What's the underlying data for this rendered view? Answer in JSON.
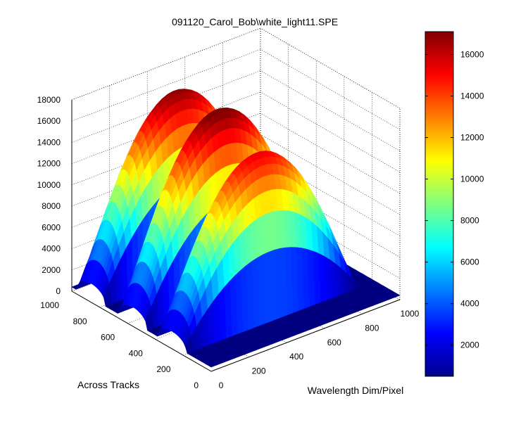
{
  "chart_data": {
    "type": "surface",
    "title": "091120_Carol_Bob\\white_light11.SPE",
    "xlabel": "Wavelength Dim/Pixel",
    "ylabel": "Across Tracks",
    "zlabel": "",
    "xlim": [
      0,
      1000
    ],
    "ylim": [
      0,
      1000
    ],
    "zlim": [
      0,
      18000
    ],
    "x_ticks": [
      0,
      200,
      400,
      600,
      800,
      1000
    ],
    "y_ticks": [
      0,
      200,
      400,
      600,
      800,
      1000
    ],
    "z_ticks": [
      0,
      2000,
      4000,
      6000,
      8000,
      10000,
      12000,
      14000,
      16000,
      18000
    ],
    "grid": true,
    "colormap": "jet",
    "series": [
      {
        "track_center": 860,
        "track_halfwidth": 100,
        "peak_wavelength": 450,
        "wavelength_halfwidth": 470,
        "peak": 16500
      },
      {
        "track_center": 560,
        "track_halfwidth": 100,
        "peak_wavelength": 450,
        "wavelength_halfwidth": 470,
        "peak": 17000
      },
      {
        "track_center": 280,
        "track_halfwidth": 100,
        "peak_wavelength": 450,
        "wavelength_halfwidth": 470,
        "peak": 15000
      }
    ],
    "colorbar": {
      "range": [
        500,
        17100
      ],
      "ticks": [
        2000,
        4000,
        6000,
        8000,
        10000,
        12000,
        14000,
        16000
      ]
    }
  }
}
